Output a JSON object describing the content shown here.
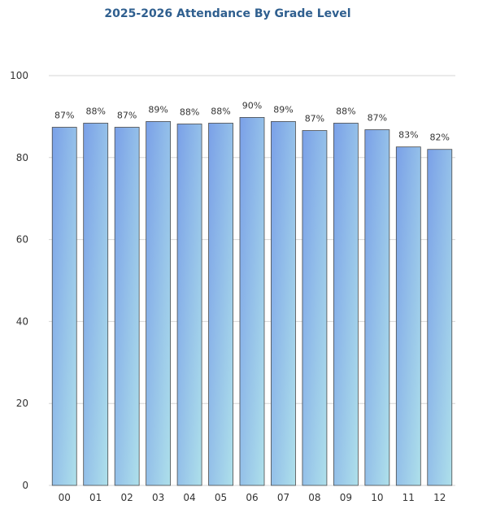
{
  "chart_data": {
    "type": "bar",
    "title": "2025-2026 Attendance By Grade Level",
    "xlabel": "",
    "ylabel": "",
    "categories": [
      "00",
      "01",
      "02",
      "03",
      "04",
      "05",
      "06",
      "07",
      "08",
      "09",
      "10",
      "11",
      "12"
    ],
    "values": [
      87.4,
      88.4,
      87.4,
      88.8,
      88.2,
      88.4,
      89.8,
      88.8,
      86.6,
      88.4,
      86.8,
      82.6,
      82.0
    ],
    "data_labels": [
      "87%",
      "88%",
      "87%",
      "89%",
      "88%",
      "88%",
      "90%",
      "89%",
      "87%",
      "88%",
      "87%",
      "83%",
      "82%"
    ],
    "ylim": [
      0,
      100
    ],
    "yticks": [
      0,
      20,
      40,
      60,
      80,
      100
    ],
    "grid": true,
    "legend": "none",
    "colors": {
      "bar_top": "#7aa0e8",
      "bar_bottom": "#aee0ea",
      "bar_stroke": "#4a4a4a",
      "grid": "#d6d6d6",
      "title": "#2f5f8f"
    }
  }
}
